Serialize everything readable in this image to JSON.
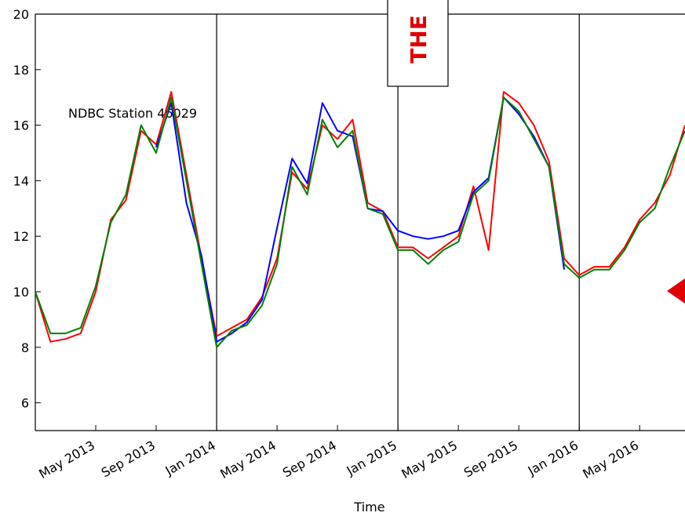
{
  "chart_data": {
    "type": "line",
    "annotation": "NDBC Station 46029",
    "overlay_text": "THE",
    "xlabel": "Time",
    "xlim": [
      "2013-01",
      "2016-08"
    ],
    "xticks": [
      {
        "value": "2013-05",
        "label": "May 2013"
      },
      {
        "value": "2013-09",
        "label": "Sep 2013"
      },
      {
        "value": "2014-01",
        "label": "Jan 2014"
      },
      {
        "value": "2014-05",
        "label": "May 2014"
      },
      {
        "value": "2014-09",
        "label": "Sep 2014"
      },
      {
        "value": "2015-01",
        "label": "Jan 2015"
      },
      {
        "value": "2015-05",
        "label": "May 2015"
      },
      {
        "value": "2015-09",
        "label": "Sep 2015"
      },
      {
        "value": "2016-01",
        "label": "Jan 2016"
      },
      {
        "value": "2016-05",
        "label": "May 2016"
      }
    ],
    "vlines": [
      "2014-01",
      "2015-01",
      "2016-01"
    ],
    "ylim": [
      5,
      20
    ],
    "yticks": [
      6,
      8,
      10,
      12,
      14,
      16,
      18,
      20
    ],
    "x": [
      "2013-01",
      "2013-02",
      "2013-03",
      "2013-04",
      "2013-05",
      "2013-06",
      "2013-07",
      "2013-08",
      "2013-09",
      "2013-10",
      "2013-11",
      "2013-12",
      "2014-01",
      "2014-02",
      "2014-03",
      "2014-04",
      "2014-05",
      "2014-06",
      "2014-07",
      "2014-08",
      "2014-09",
      "2014-10",
      "2014-11",
      "2014-12",
      "2015-01",
      "2015-02",
      "2015-03",
      "2015-04",
      "2015-05",
      "2015-06",
      "2015-07",
      "2015-08",
      "2015-09",
      "2015-10",
      "2015-11",
      "2015-12",
      "2016-01",
      "2016-02",
      "2016-03",
      "2016-04",
      "2016-05",
      "2016-06",
      "2016-07",
      "2016-08"
    ],
    "series": [
      {
        "color": "#ff0000",
        "values": [
          10.0,
          8.2,
          8.3,
          8.5,
          10.0,
          12.6,
          13.3,
          15.8,
          15.3,
          17.2,
          14.2,
          11.2,
          8.4,
          8.7,
          9.0,
          9.8,
          11.2,
          14.3,
          13.7,
          16.0,
          15.5,
          16.2,
          13.2,
          12.9,
          11.6,
          11.6,
          11.2,
          11.6,
          12.0,
          13.8,
          11.5,
          17.2,
          16.8,
          16.0,
          14.7,
          11.2,
          10.6,
          10.9,
          10.9,
          11.6,
          12.6,
          13.2,
          14.2,
          16.0
        ]
      },
      {
        "color": "#0000ff",
        "values": [
          null,
          null,
          null,
          null,
          null,
          null,
          null,
          null,
          15.2,
          16.8,
          13.2,
          11.3,
          8.2,
          8.5,
          8.9,
          9.7,
          12.3,
          14.8,
          13.9,
          16.8,
          15.8,
          15.6,
          13.0,
          12.9,
          12.2,
          12.0,
          11.9,
          12.0,
          12.2,
          13.6,
          14.1,
          17.0,
          16.4,
          15.6,
          14.5,
          10.8,
          null,
          null,
          null,
          null,
          null,
          null,
          null,
          null
        ]
      },
      {
        "color": "#008000",
        "values": [
          10.0,
          8.5,
          8.5,
          8.7,
          10.2,
          12.5,
          13.5,
          16.0,
          15.0,
          17.0,
          14.0,
          11.0,
          8.0,
          8.6,
          8.8,
          9.5,
          11.0,
          14.5,
          13.5,
          16.2,
          15.2,
          15.8,
          13.0,
          12.8,
          11.5,
          11.5,
          11.0,
          11.5,
          11.8,
          13.5,
          14.0,
          17.0,
          16.5,
          15.5,
          14.5,
          11.0,
          10.5,
          10.8,
          10.8,
          11.5,
          12.5,
          13.0,
          14.5,
          15.8
        ]
      }
    ]
  }
}
